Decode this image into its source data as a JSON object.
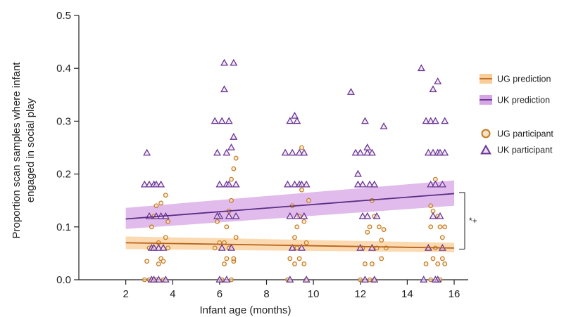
{
  "chart_data": {
    "type": "scatter",
    "xlabel": "Infant age (months)",
    "ylabel": [
      "Proportion scan samples where infant",
      "engaged in social play"
    ],
    "xlim": [
      0,
      16.6
    ],
    "ylim": [
      0,
      0.5
    ],
    "x_ticks": [
      2,
      4,
      6,
      8,
      10,
      12,
      14,
      16
    ],
    "y_ticks": [
      0.0,
      0.1,
      0.2,
      0.3,
      0.4,
      0.5
    ],
    "x_tick_labels": [
      "2",
      "4",
      "6",
      "8",
      "10",
      "12",
      "14",
      "16"
    ],
    "y_tick_labels": [
      "0.0",
      "0.1",
      "0.2",
      "0.3",
      "0.4",
      "0.5"
    ],
    "grid": false,
    "legend_position": "right",
    "legend": [
      {
        "key": "ug_pred",
        "label": "UG prediction",
        "kind": "line"
      },
      {
        "key": "uk_pred",
        "label": "UK prediction",
        "kind": "line"
      },
      {
        "key": "ug_pts",
        "label": "UG participant",
        "kind": "circle"
      },
      {
        "key": "uk_pts",
        "label": "UK participant",
        "kind": "triangle"
      }
    ],
    "annotation": "*+",
    "colors": {
      "ug_line": "#b8621b",
      "ug_band": "#f9cd98",
      "ug_point": "#c47a1e",
      "uk_line": "#5b2c86",
      "uk_band": "#d7a4e4",
      "uk_point": "#6a3494"
    },
    "prediction_lines": {
      "UG": {
        "x": [
          2,
          16
        ],
        "y": [
          0.07,
          0.06
        ],
        "band_lower": [
          0.058,
          0.052
        ],
        "band_upper": [
          0.082,
          0.07
        ]
      },
      "UK": {
        "x": [
          2,
          16
        ],
        "y": [
          0.115,
          0.163
        ],
        "band_lower": [
          0.096,
          0.14
        ],
        "band_upper": [
          0.136,
          0.188
        ]
      }
    },
    "series": [
      {
        "name": "UG participant",
        "marker": "circle",
        "points": [
          [
            2.8,
            0.0
          ],
          [
            2.9,
            0.035
          ],
          [
            3.0,
            0.06
          ],
          [
            3.1,
            0.1
          ],
          [
            3.2,
            0.12
          ],
          [
            3.3,
            0.14
          ],
          [
            3.3,
            0.0
          ],
          [
            3.4,
            0.07
          ],
          [
            3.4,
            0.03
          ],
          [
            3.5,
            0.145
          ],
          [
            3.5,
            0.04
          ],
          [
            3.6,
            0.0
          ],
          [
            3.7,
            0.16
          ],
          [
            3.7,
            0.08
          ],
          [
            3.8,
            0.11
          ],
          [
            3.8,
            0.06
          ],
          [
            3.0,
            0.0
          ],
          [
            3.6,
            0.035
          ],
          [
            5.8,
            0.06
          ],
          [
            5.9,
            0.11
          ],
          [
            6.0,
            0.07
          ],
          [
            6.1,
            0.0
          ],
          [
            6.2,
            0.03
          ],
          [
            6.3,
            0.04
          ],
          [
            6.3,
            0.1
          ],
          [
            6.4,
            0.13
          ],
          [
            6.4,
            0.06
          ],
          [
            6.5,
            0.15
          ],
          [
            6.5,
            0.0
          ],
          [
            6.6,
            0.21
          ],
          [
            6.6,
            0.035
          ],
          [
            6.7,
            0.23
          ],
          [
            6.7,
            0.08
          ],
          [
            6.5,
            0.19
          ],
          [
            6.2,
            0.07
          ],
          [
            6.6,
            0.04
          ],
          [
            8.9,
            0.0
          ],
          [
            9.0,
            0.04
          ],
          [
            9.1,
            0.06
          ],
          [
            9.2,
            0.08
          ],
          [
            9.2,
            0.03
          ],
          [
            9.3,
            0.1
          ],
          [
            9.3,
            0.06
          ],
          [
            9.4,
            0.12
          ],
          [
            9.4,
            0.04
          ],
          [
            9.5,
            0.25
          ],
          [
            9.5,
            0.17
          ],
          [
            9.6,
            0.03
          ],
          [
            9.6,
            0.11
          ],
          [
            9.7,
            0.07
          ],
          [
            9.7,
            0.0
          ],
          [
            9.8,
            0.15
          ],
          [
            9.1,
            0.14
          ],
          [
            12.0,
            0.0
          ],
          [
            12.1,
            0.06
          ],
          [
            12.2,
            0.03
          ],
          [
            12.3,
            0.09
          ],
          [
            12.4,
            0.1
          ],
          [
            12.4,
            0.0
          ],
          [
            12.5,
            0.03
          ],
          [
            12.5,
            0.15
          ],
          [
            12.6,
            0.12
          ],
          [
            12.7,
            0.06
          ],
          [
            12.8,
            0.1
          ],
          [
            12.9,
            0.04
          ],
          [
            12.9,
            0.075
          ],
          [
            13.0,
            0.095
          ],
          [
            13.1,
            0.06
          ],
          [
            12.6,
            0.0
          ],
          [
            14.8,
            0.03
          ],
          [
            14.9,
            0.06
          ],
          [
            15.0,
            0.1
          ],
          [
            15.0,
            0.0
          ],
          [
            15.1,
            0.04
          ],
          [
            15.1,
            0.13
          ],
          [
            15.2,
            0.19
          ],
          [
            15.2,
            0.06
          ],
          [
            15.3,
            0.12
          ],
          [
            15.3,
            0.03
          ],
          [
            15.4,
            0.1
          ],
          [
            15.4,
            0.0
          ],
          [
            15.5,
            0.08
          ],
          [
            15.5,
            0.04
          ],
          [
            15.6,
            0.1
          ],
          [
            15.6,
            0.03
          ],
          [
            15.0,
            0.14
          ]
        ]
      },
      {
        "name": "UK participant",
        "marker": "triangle",
        "points": [
          [
            2.8,
            0.18
          ],
          [
            2.9,
            0.24
          ],
          [
            3.0,
            0.18
          ],
          [
            3.0,
            0.12
          ],
          [
            3.1,
            0.06
          ],
          [
            3.1,
            0.0
          ],
          [
            3.2,
            0.18
          ],
          [
            3.2,
            0.06
          ],
          [
            3.3,
            0.12
          ],
          [
            3.3,
            0.18
          ],
          [
            3.4,
            0.06
          ],
          [
            3.4,
            0.0
          ],
          [
            3.5,
            0.18
          ],
          [
            3.5,
            0.12
          ],
          [
            3.6,
            0.06
          ],
          [
            3.7,
            0.0
          ],
          [
            3.7,
            0.12
          ],
          [
            3.2,
            0.0
          ],
          [
            5.8,
            0.3
          ],
          [
            5.9,
            0.24
          ],
          [
            6.0,
            0.18
          ],
          [
            6.0,
            0.12
          ],
          [
            6.1,
            0.3
          ],
          [
            6.1,
            0.06
          ],
          [
            6.2,
            0.41
          ],
          [
            6.2,
            0.36
          ],
          [
            6.3,
            0.24
          ],
          [
            6.3,
            0.18
          ],
          [
            6.3,
            0.0
          ],
          [
            6.4,
            0.3
          ],
          [
            6.4,
            0.18
          ],
          [
            6.5,
            0.25
          ],
          [
            6.5,
            0.06
          ],
          [
            6.6,
            0.41
          ],
          [
            6.6,
            0.27
          ],
          [
            6.7,
            0.12
          ],
          [
            5.9,
            0.12
          ],
          [
            6.0,
            0.0
          ],
          [
            6.4,
            0.12
          ],
          [
            6.7,
            0.18
          ],
          [
            8.8,
            0.24
          ],
          [
            8.9,
            0.18
          ],
          [
            9.0,
            0.3
          ],
          [
            9.0,
            0.12
          ],
          [
            9.1,
            0.24
          ],
          [
            9.1,
            0.06
          ],
          [
            9.2,
            0.31
          ],
          [
            9.2,
            0.18
          ],
          [
            9.3,
            0.3
          ],
          [
            9.3,
            0.12
          ],
          [
            9.4,
            0.24
          ],
          [
            9.4,
            0.18
          ],
          [
            9.5,
            0.18
          ],
          [
            9.5,
            0.06
          ],
          [
            9.6,
            0.24
          ],
          [
            9.6,
            0.12
          ],
          [
            9.7,
            0.18
          ],
          [
            9.7,
            0.0
          ],
          [
            9.0,
            0.0
          ],
          [
            11.6,
            0.355
          ],
          [
            11.8,
            0.24
          ],
          [
            11.9,
            0.2
          ],
          [
            11.9,
            0.18
          ],
          [
            12.0,
            0.24
          ],
          [
            12.0,
            0.06
          ],
          [
            12.1,
            0.18
          ],
          [
            12.1,
            0.12
          ],
          [
            12.2,
            0.3
          ],
          [
            12.2,
            0.0
          ],
          [
            12.3,
            0.24
          ],
          [
            12.3,
            0.12
          ],
          [
            12.4,
            0.18
          ],
          [
            12.5,
            0.24
          ],
          [
            12.5,
            0.06
          ],
          [
            12.6,
            0.18
          ],
          [
            12.6,
            0.0
          ],
          [
            12.7,
            0.12
          ],
          [
            13.0,
            0.29
          ],
          [
            12.3,
            0.25
          ],
          [
            14.6,
            0.4
          ],
          [
            14.8,
            0.3
          ],
          [
            14.9,
            0.24
          ],
          [
            14.9,
            0.06
          ],
          [
            15.0,
            0.3
          ],
          [
            15.0,
            0.18
          ],
          [
            15.1,
            0.36
          ],
          [
            15.1,
            0.24
          ],
          [
            15.1,
            0.12
          ],
          [
            15.2,
            0.3
          ],
          [
            15.2,
            0.18
          ],
          [
            15.3,
            0.375
          ],
          [
            15.3,
            0.24
          ],
          [
            15.3,
            0.0
          ],
          [
            15.4,
            0.24
          ],
          [
            15.4,
            0.12
          ],
          [
            15.5,
            0.18
          ],
          [
            15.5,
            0.06
          ],
          [
            15.6,
            0.24
          ],
          [
            15.6,
            0.3
          ],
          [
            14.7,
            0.0
          ],
          [
            15.2,
            0.0
          ]
        ]
      }
    ]
  }
}
